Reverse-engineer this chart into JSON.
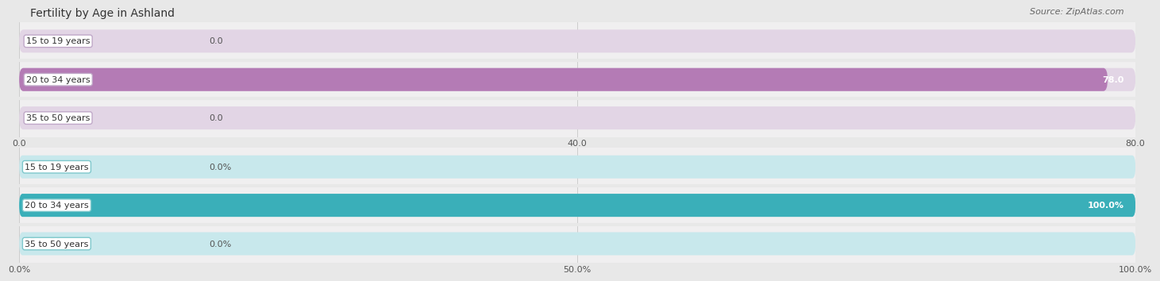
{
  "title": "Fertility by Age in Ashland",
  "source": "Source: ZipAtlas.com",
  "top_chart": {
    "categories": [
      "15 to 19 years",
      "20 to 34 years",
      "35 to 50 years"
    ],
    "values": [
      0.0,
      78.0,
      0.0
    ],
    "max_val": 80.0,
    "xticks": [
      0.0,
      40.0,
      80.0
    ],
    "xticklabels": [
      "0.0",
      "40.0",
      "80.0"
    ],
    "bar_color": "#b47bb5",
    "bar_bg_color": "#e2d5e5",
    "label_inside_color": "#ffffff",
    "label_outside_color": "#555555",
    "label_box_edge": "#c0a8c8"
  },
  "bottom_chart": {
    "categories": [
      "15 to 19 years",
      "20 to 34 years",
      "35 to 50 years"
    ],
    "values": [
      0.0,
      100.0,
      0.0
    ],
    "max_val": 100.0,
    "xticks": [
      0.0,
      50.0,
      100.0
    ],
    "xticklabels": [
      "0.0%",
      "50.0%",
      "100.0%"
    ],
    "bar_color": "#3aafb9",
    "bar_bg_color": "#c8e8ec",
    "label_inside_color": "#ffffff",
    "label_outside_color": "#555555",
    "label_box_edge": "#7ec8cc"
  },
  "fig_bg_color": "#e8e8e8",
  "panel_bg_color": "#f0eff0",
  "title_fontsize": 10,
  "source_fontsize": 8,
  "tick_fontsize": 8,
  "bar_label_fontsize": 8,
  "cat_label_fontsize": 8
}
